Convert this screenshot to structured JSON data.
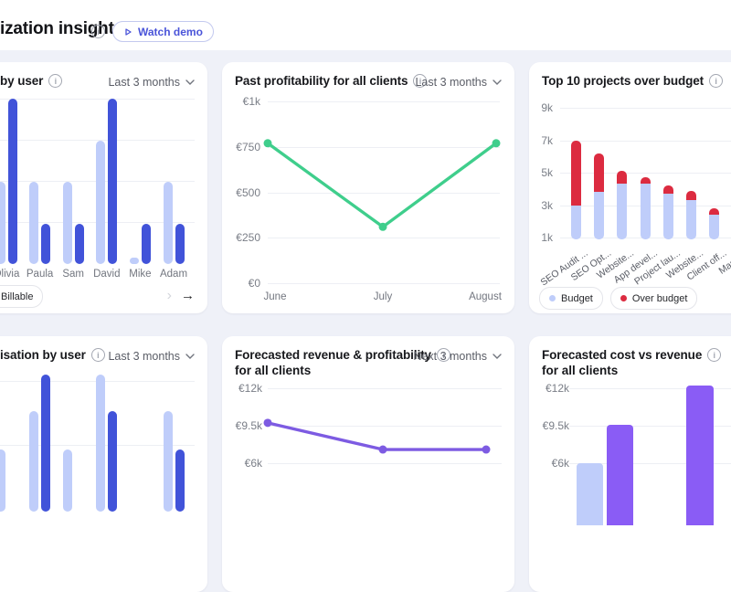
{
  "page": {
    "bg": "#EFF1F8",
    "header_bg": "#FFFFFF",
    "card_bg": "#FFFFFF"
  },
  "colors": {
    "light_blue": "#BFCDFA",
    "dark_blue": "#4153D9",
    "green": "#3FCE8C",
    "red": "#DC2B40",
    "purple": "#8A5CF5",
    "purple_line": "#7D5BE2",
    "grid": "#EDEFF4",
    "axis_text": "#7A7E87"
  },
  "header": {
    "title": "ization insights",
    "watch_demo_label": "Watch demo"
  },
  "cards": {
    "billable_by_user": {
      "title": "by user",
      "period": "Last 3 months",
      "legend_chip": "Billable"
    },
    "past_profitability": {
      "title": "Past profitability for all clients",
      "period": "Last 3 months"
    },
    "top_projects": {
      "title": "Top 10 projects over budget"
    },
    "utilisation_by_user": {
      "title": "isation by user",
      "period": "Last 3 months"
    },
    "forecasted_revenue": {
      "title": "Forecasted revenue & profitability",
      "title2": "for all clients",
      "period": "Next 3 months"
    },
    "forecasted_cost": {
      "title": "Forecasted cost vs revenue",
      "title2": "for all clients"
    }
  },
  "chart_data": [
    {
      "id": "billable-by-user",
      "type": "bar",
      "unit": "percent-of-axis-height",
      "categories": [
        "Olivia",
        "Paula",
        "Sam",
        "David",
        "Mike",
        "Adam"
      ],
      "series": [
        {
          "key": "billable",
          "color": "light_blue",
          "values": [
            49,
            49,
            49,
            74,
            4,
            49
          ]
        },
        {
          "key": "secondary",
          "color": "dark_blue",
          "values": [
            99,
            24,
            24,
            99,
            24,
            24
          ]
        }
      ],
      "grid": true
    },
    {
      "id": "past-profitability",
      "type": "line",
      "color": "green",
      "x": [
        "June",
        "July",
        "August"
      ],
      "values": [
        770,
        310,
        770
      ],
      "yticks": [
        {
          "label": "€1k",
          "value": 1000
        },
        {
          "label": "€750",
          "value": 750
        },
        {
          "label": "€500",
          "value": 500
        },
        {
          "label": "€250",
          "value": 250
        },
        {
          "label": "€0",
          "value": 0
        }
      ],
      "ylim": [
        0,
        1000
      ],
      "grid": true
    },
    {
      "id": "top-projects-over-budget",
      "type": "stacked-bar",
      "unit": "k",
      "categories": [
        "SEO Audit ...",
        "SEO Opt...",
        "Website...",
        "App devel...",
        "Project lau...",
        "Website...",
        "Client off...",
        "Marke..."
      ],
      "series": [
        {
          "name": "Budget",
          "color": "light_blue",
          "values": [
            3.0,
            3.8,
            4.3,
            4.3,
            3.7,
            3.3,
            2.4,
            null
          ]
        },
        {
          "name": "Over budget",
          "color": "red",
          "values": [
            4.0,
            2.4,
            0.8,
            0.4,
            0.5,
            0.6,
            0.4,
            null
          ]
        }
      ],
      "yticks": [
        {
          "label": "9k",
          "value": 9
        },
        {
          "label": "7k",
          "value": 7
        },
        {
          "label": "5k",
          "value": 5
        },
        {
          "label": "3k",
          "value": 3
        },
        {
          "label": "1k",
          "value": 1
        }
      ],
      "ylim": [
        1,
        9
      ],
      "grid": true,
      "legend_position": "bottom"
    },
    {
      "id": "utilisation-by-user",
      "type": "bar",
      "unit": "percent-of-axis-height",
      "series": [
        {
          "key": "billable",
          "color": "light_blue",
          "values": [
            44,
            71,
            44,
            97,
            null,
            71
          ]
        },
        {
          "key": "secondary",
          "color": "dark_blue",
          "values": [
            null,
            97,
            null,
            71,
            null,
            44
          ]
        }
      ],
      "grid": true
    },
    {
      "id": "forecasted-revenue-profitability",
      "type": "line",
      "color": "purple_line",
      "values_k": [
        9.7,
        7.3,
        7.3
      ],
      "yticks": [
        {
          "label": "€12k",
          "value": 12
        },
        {
          "label": "€9.5k",
          "value": 9.5
        },
        {
          "label": "€6k",
          "value": 6
        }
      ],
      "grid": true
    },
    {
      "id": "forecasted-cost-vs-revenue",
      "type": "bar",
      "unit": "k",
      "groups": [
        {
          "cost": 6.05,
          "revenue": 9.6
        },
        {
          "cost": null,
          "revenue": 12.2
        }
      ],
      "series_colors": {
        "cost": "light_blue",
        "revenue": "purple"
      },
      "yticks": [
        {
          "label": "€12k",
          "value": 12
        },
        {
          "label": "€9.5k",
          "value": 9.5
        },
        {
          "label": "€6k",
          "value": 6
        }
      ],
      "grid": true
    }
  ]
}
